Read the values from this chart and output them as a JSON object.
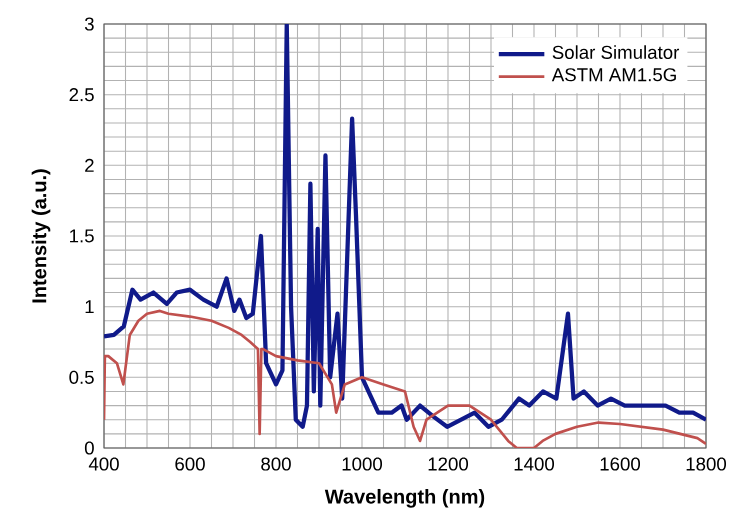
{
  "chart_data": {
    "type": "line",
    "xlabel": "Wavelength (nm)",
    "ylabel": "Intensity (a.u.)",
    "xlim": [
      400,
      1800
    ],
    "xticks": [
      400,
      600,
      800,
      1000,
      1200,
      1400,
      1600,
      1800
    ],
    "ylim": [
      0,
      3
    ],
    "yticks": [
      0,
      0.5,
      1,
      1.5,
      2,
      2.5,
      3
    ],
    "grid": true,
    "legend": "top right",
    "marker": "none",
    "line_style": "solid",
    "series": [
      {
        "name": "Solar Simulator",
        "color": "#101a8a",
        "x": [
          400,
          423,
          446,
          466,
          485,
          515,
          546,
          569,
          600,
          631,
          662,
          685,
          703,
          715,
          731,
          746,
          765,
          777,
          800,
          815,
          825,
          835,
          846,
          862,
          872,
          880,
          888,
          897,
          903,
          915,
          926,
          943,
          954,
          977,
          986,
          1000,
          1015,
          1038,
          1069,
          1092,
          1104,
          1135,
          1167,
          1198,
          1230,
          1262,
          1294,
          1325,
          1365,
          1389,
          1421,
          1452,
          1479,
          1492,
          1516,
          1548,
          1579,
          1611,
          1643,
          1675,
          1706,
          1738,
          1770,
          1800
        ],
        "values": [
          0.79,
          0.8,
          0.86,
          1.12,
          1.05,
          1.1,
          1.02,
          1.1,
          1.12,
          1.05,
          1.0,
          1.2,
          0.97,
          1.05,
          0.92,
          0.95,
          1.5,
          0.6,
          0.45,
          0.55,
          3.0,
          1.0,
          0.2,
          0.15,
          0.3,
          1.87,
          0.4,
          1.55,
          0.3,
          2.07,
          0.5,
          0.95,
          0.35,
          2.33,
          1.65,
          0.5,
          0.4,
          0.25,
          0.25,
          0.3,
          0.2,
          0.3,
          0.22,
          0.15,
          0.2,
          0.25,
          0.15,
          0.2,
          0.35,
          0.3,
          0.4,
          0.35,
          0.95,
          0.35,
          0.4,
          0.3,
          0.35,
          0.3,
          0.3,
          0.3,
          0.3,
          0.25,
          0.25,
          0.2
        ]
      },
      {
        "name": "ASTM AM1.5G",
        "color": "#c0504d",
        "x": [
          400,
          402,
          410,
          430,
          445,
          460,
          480,
          500,
          530,
          550,
          600,
          650,
          690,
          720,
          740,
          758,
          762,
          766,
          770,
          800,
          850,
          900,
          930,
          940,
          960,
          1000,
          1050,
          1100,
          1120,
          1135,
          1150,
          1200,
          1250,
          1300,
          1340,
          1360,
          1400,
          1420,
          1450,
          1500,
          1550,
          1600,
          1700,
          1780,
          1800
        ],
        "values": [
          0.2,
          0.65,
          0.65,
          0.6,
          0.45,
          0.8,
          0.9,
          0.95,
          0.97,
          0.95,
          0.93,
          0.9,
          0.85,
          0.8,
          0.75,
          0.7,
          0.1,
          0.7,
          0.7,
          0.65,
          0.62,
          0.6,
          0.45,
          0.25,
          0.45,
          0.5,
          0.45,
          0.4,
          0.15,
          0.05,
          0.2,
          0.3,
          0.3,
          0.2,
          0.05,
          0,
          0,
          0.05,
          0.1,
          0.15,
          0.18,
          0.17,
          0.13,
          0.07,
          0.03
        ]
      }
    ]
  }
}
